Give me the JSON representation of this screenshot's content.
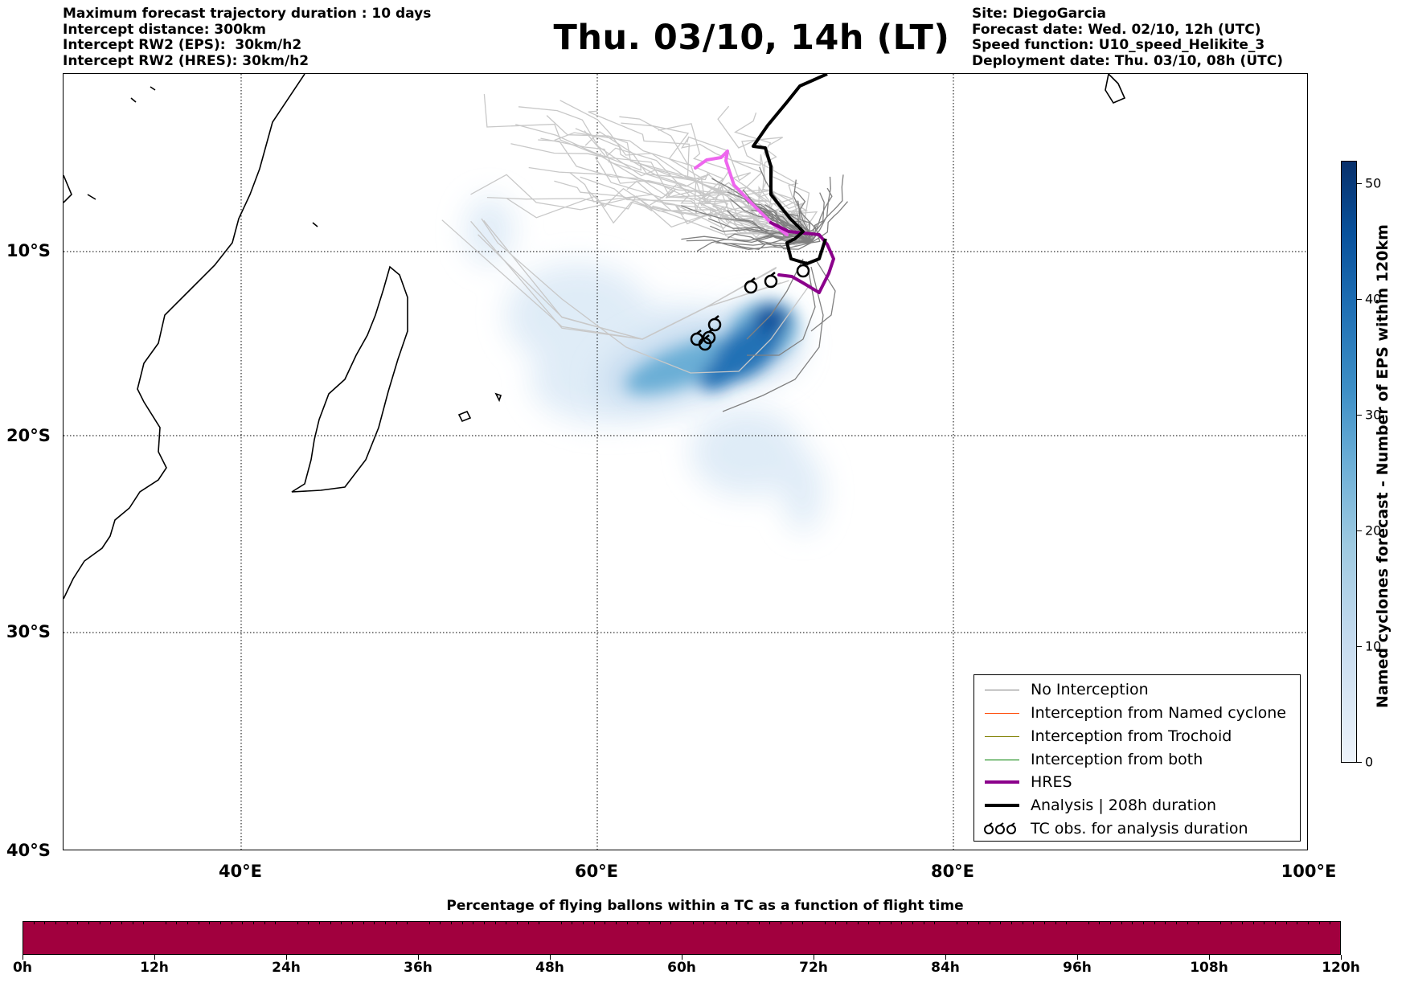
{
  "header": {
    "left_lines": [
      "Maximum forecast trajectory duration : 10 days",
      "Intercept distance: 300km",
      "Intercept RW2 (EPS):  30km/h2",
      "Intercept RW2 (HRES): 30km/h2"
    ],
    "right_lines": [
      "Site: DiegoGarcia",
      "Forecast date: Wed. 02/10, 12h (UTC)",
      "Speed function: U10_speed_Helikite_3",
      "Deployment date: Thu. 03/10, 08h (UTC)"
    ],
    "title": "Thu. 03/10, 14h (LT)"
  },
  "map": {
    "lat_labels": [
      "10°S",
      "20°S",
      "30°S",
      "40°S"
    ],
    "lon_labels": [
      "40°E",
      "60°E",
      "80°E",
      "100°E"
    ],
    "extent": {
      "lon_min": 30,
      "lon_max": 100,
      "lat_top": -0.9,
      "lat_bottom": -40
    },
    "colors": {
      "no_interception": "#808080",
      "named_cyclone": "#ff4500",
      "trochoid": "#808000",
      "both": "#008000",
      "hres": "#8b008b",
      "hres_tail": "#ee66ee",
      "analysis": "#000000",
      "eps_member": "#c8c8c8"
    }
  },
  "legend": {
    "items": [
      {
        "label": "No Interception",
        "style": "thin",
        "color": "#808080"
      },
      {
        "label": "Interception from Named cyclone",
        "style": "thin",
        "color": "#ff4500"
      },
      {
        "label": "Interception from Trochoid",
        "style": "thin",
        "color": "#808000"
      },
      {
        "label": "Interception from both",
        "style": "thin",
        "color": "#008000"
      },
      {
        "label": "HRES",
        "style": "thick",
        "color": "#8b008b"
      },
      {
        "label": "Analysis | 208h duration",
        "style": "thick",
        "color": "#000000"
      },
      {
        "label": "TC obs. for analysis duration",
        "style": "symbol",
        "color": "#000000"
      }
    ]
  },
  "colorbar": {
    "title": "Named cyclones forecast - Number of EPS within 120km",
    "ticks": [
      "0",
      "10",
      "20",
      "30",
      "40",
      "50"
    ],
    "min": 0,
    "max": 52
  },
  "bottom": {
    "title": "Percentage of flying ballons within a TC as a function of flight time",
    "ticks": [
      "0h",
      "12h",
      "24h",
      "36h",
      "48h",
      "60h",
      "72h",
      "84h",
      "96h",
      "108h",
      "120h"
    ],
    "bar_color": "#a1003e"
  }
}
